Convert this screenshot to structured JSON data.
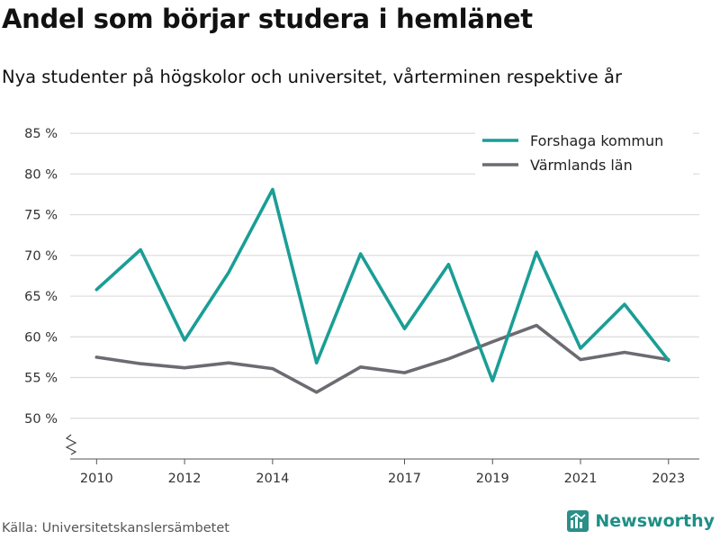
{
  "title": "Andel som börjar studera i hemlänet",
  "subtitle": "Nya studenter på högskolor och universitet, vårterminen respektive år",
  "source": "Källa: Universitetskanslersämbetet",
  "brand": "Newsworthy",
  "chart_data": {
    "type": "line",
    "x": [
      2010,
      2011,
      2012,
      2013,
      2014,
      2015,
      2016,
      2017,
      2018,
      2019,
      2020,
      2021,
      2022,
      2023
    ],
    "x_tick_labels": [
      "2010",
      "2012",
      "2014",
      "2017",
      "2019",
      "2021",
      "2023"
    ],
    "x_tick_values": [
      2010,
      2012,
      2014,
      2017,
      2019,
      2021,
      2023
    ],
    "xlim": [
      2009.4,
      2023.7
    ],
    "ylim": [
      45,
      87
    ],
    "y_ticks": [
      50,
      55,
      60,
      65,
      70,
      75,
      80,
      85
    ],
    "y_tick_suffix": " %",
    "grid": true,
    "legend_position": "top-right",
    "series": [
      {
        "name": "Forshaga kommun",
        "color": "#1a9e96",
        "values": [
          65.8,
          70.7,
          59.6,
          67.9,
          78.1,
          56.8,
          70.2,
          61.0,
          68.9,
          54.6,
          70.4,
          58.6,
          64.0,
          57.1
        ]
      },
      {
        "name": "Värmlands län",
        "color": "#6d6b72",
        "values": [
          57.5,
          56.7,
          56.2,
          56.8,
          56.1,
          53.2,
          56.3,
          55.6,
          57.3,
          59.4,
          61.4,
          57.2,
          58.1,
          57.2
        ]
      }
    ]
  }
}
